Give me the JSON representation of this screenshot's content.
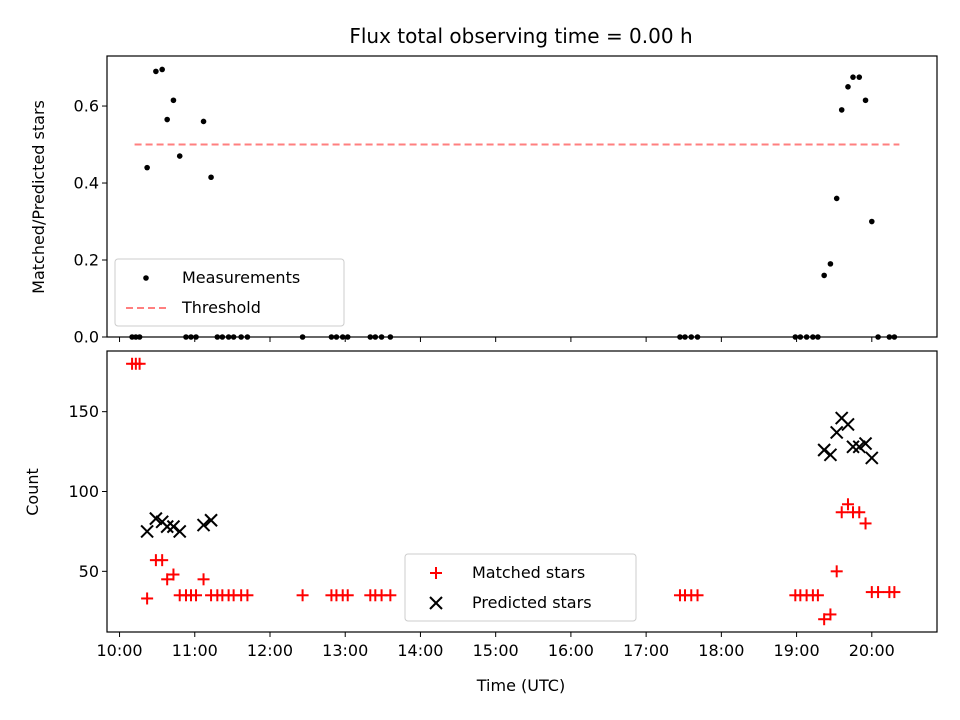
{
  "title": "Flux total observing time = 0.00 h",
  "xlabel": "Time (UTC)",
  "x_ticks": [
    "10:00",
    "11:00",
    "12:00",
    "13:00",
    "14:00",
    "15:00",
    "16:00",
    "17:00",
    "18:00",
    "19:00",
    "20:00"
  ],
  "colors": {
    "measurements": "#000000",
    "threshold": "#ff7f7f",
    "matched": "#ff0000",
    "predicted": "#000000"
  },
  "chart_data": [
    {
      "type": "scatter",
      "ylabel": "Matched/Predicted stars",
      "xlim": [
        "09:50",
        "20:52"
      ],
      "ylim": [
        0,
        0.73
      ],
      "y_ticks": [
        "0.0",
        "0.2",
        "0.4",
        "0.6"
      ],
      "legend_position": "lower-left",
      "series": [
        {
          "name": "Measurements",
          "marker": "dot",
          "points": [
            {
              "x": "10:10",
              "y": 0
            },
            {
              "x": "10:13",
              "y": 0
            },
            {
              "x": "10:16",
              "y": 0
            },
            {
              "x": "10:22",
              "y": 0.44
            },
            {
              "x": "10:29",
              "y": 0.69
            },
            {
              "x": "10:34",
              "y": 0.695
            },
            {
              "x": "10:38",
              "y": 0.565
            },
            {
              "x": "10:43",
              "y": 0.615
            },
            {
              "x": "10:48",
              "y": 0.47
            },
            {
              "x": "10:53",
              "y": 0
            },
            {
              "x": "10:57",
              "y": 0
            },
            {
              "x": "11:01",
              "y": 0
            },
            {
              "x": "11:07",
              "y": 0.56
            },
            {
              "x": "11:13",
              "y": 0.415
            },
            {
              "x": "11:18",
              "y": 0
            },
            {
              "x": "11:22",
              "y": 0
            },
            {
              "x": "11:27",
              "y": 0
            },
            {
              "x": "11:31",
              "y": 0
            },
            {
              "x": "11:37",
              "y": 0
            },
            {
              "x": "11:42",
              "y": 0
            },
            {
              "x": "12:26",
              "y": 0
            },
            {
              "x": "12:49",
              "y": 0
            },
            {
              "x": "12:53",
              "y": 0
            },
            {
              "x": "12:58",
              "y": 0
            },
            {
              "x": "13:02",
              "y": 0
            },
            {
              "x": "13:20",
              "y": 0
            },
            {
              "x": "13:24",
              "y": 0
            },
            {
              "x": "13:29",
              "y": 0
            },
            {
              "x": "13:36",
              "y": 0
            },
            {
              "x": "17:27",
              "y": 0
            },
            {
              "x": "17:31",
              "y": 0
            },
            {
              "x": "17:36",
              "y": 0
            },
            {
              "x": "17:41",
              "y": 0
            },
            {
              "x": "18:59",
              "y": 0
            },
            {
              "x": "19:03",
              "y": 0
            },
            {
              "x": "19:08",
              "y": 0
            },
            {
              "x": "19:13",
              "y": 0
            },
            {
              "x": "19:17",
              "y": 0
            },
            {
              "x": "19:22",
              "y": 0.16
            },
            {
              "x": "19:27",
              "y": 0.19
            },
            {
              "x": "19:32",
              "y": 0.36
            },
            {
              "x": "19:36",
              "y": 0.59
            },
            {
              "x": "19:41",
              "y": 0.65
            },
            {
              "x": "19:45",
              "y": 0.675
            },
            {
              "x": "19:50",
              "y": 0.675
            },
            {
              "x": "19:55",
              "y": 0.615
            },
            {
              "x": "20:00",
              "y": 0.3
            },
            {
              "x": "20:05",
              "y": 0
            },
            {
              "x": "20:14",
              "y": 0
            },
            {
              "x": "20:18",
              "y": 0
            }
          ]
        },
        {
          "name": "Threshold",
          "style": "dashed",
          "points": [
            {
              "x": "10:12",
              "y": 0.5
            },
            {
              "x": "20:22",
              "y": 0.5
            }
          ]
        }
      ]
    },
    {
      "type": "scatter",
      "ylabel": "Count",
      "xlim": [
        "09:50",
        "20:52"
      ],
      "ylim": [
        12,
        188
      ],
      "y_ticks": [
        "50",
        "100",
        "150"
      ],
      "legend_position": "lower-center",
      "series": [
        {
          "name": "Matched stars",
          "marker": "plus",
          "points": [
            {
              "x": "10:10",
              "y": 180
            },
            {
              "x": "10:13",
              "y": 180
            },
            {
              "x": "10:16",
              "y": 180
            },
            {
              "x": "10:22",
              "y": 33
            },
            {
              "x": "10:29",
              "y": 57
            },
            {
              "x": "10:34",
              "y": 57
            },
            {
              "x": "10:38",
              "y": 45
            },
            {
              "x": "10:43",
              "y": 48
            },
            {
              "x": "10:48",
              "y": 35
            },
            {
              "x": "10:53",
              "y": 35
            },
            {
              "x": "10:57",
              "y": 35
            },
            {
              "x": "11:01",
              "y": 35
            },
            {
              "x": "11:07",
              "y": 45
            },
            {
              "x": "11:13",
              "y": 35
            },
            {
              "x": "11:18",
              "y": 35
            },
            {
              "x": "11:22",
              "y": 35
            },
            {
              "x": "11:27",
              "y": 35
            },
            {
              "x": "11:31",
              "y": 35
            },
            {
              "x": "11:37",
              "y": 35
            },
            {
              "x": "11:42",
              "y": 35
            },
            {
              "x": "12:26",
              "y": 35
            },
            {
              "x": "12:49",
              "y": 35
            },
            {
              "x": "12:53",
              "y": 35
            },
            {
              "x": "12:58",
              "y": 35
            },
            {
              "x": "13:02",
              "y": 35
            },
            {
              "x": "13:20",
              "y": 35
            },
            {
              "x": "13:24",
              "y": 35
            },
            {
              "x": "13:29",
              "y": 35
            },
            {
              "x": "13:36",
              "y": 35
            },
            {
              "x": "17:27",
              "y": 35
            },
            {
              "x": "17:31",
              "y": 35
            },
            {
              "x": "17:36",
              "y": 35
            },
            {
              "x": "17:41",
              "y": 35
            },
            {
              "x": "18:59",
              "y": 35
            },
            {
              "x": "19:03",
              "y": 35
            },
            {
              "x": "19:08",
              "y": 35
            },
            {
              "x": "19:13",
              "y": 35
            },
            {
              "x": "19:17",
              "y": 35
            },
            {
              "x": "19:22",
              "y": 20
            },
            {
              "x": "19:27",
              "y": 23
            },
            {
              "x": "19:32",
              "y": 50
            },
            {
              "x": "19:36",
              "y": 87
            },
            {
              "x": "19:41",
              "y": 92
            },
            {
              "x": "19:45",
              "y": 87
            },
            {
              "x": "19:50",
              "y": 87
            },
            {
              "x": "19:55",
              "y": 80
            },
            {
              "x": "20:00",
              "y": 37
            },
            {
              "x": "20:05",
              "y": 37
            },
            {
              "x": "20:14",
              "y": 37
            },
            {
              "x": "20:18",
              "y": 37
            }
          ]
        },
        {
          "name": "Predicted stars",
          "marker": "x",
          "points": [
            {
              "x": "10:22",
              "y": 75
            },
            {
              "x": "10:29",
              "y": 83
            },
            {
              "x": "10:34",
              "y": 81
            },
            {
              "x": "10:38",
              "y": 78
            },
            {
              "x": "10:43",
              "y": 78
            },
            {
              "x": "10:48",
              "y": 75
            },
            {
              "x": "11:07",
              "y": 79
            },
            {
              "x": "11:13",
              "y": 82
            },
            {
              "x": "19:22",
              "y": 126
            },
            {
              "x": "19:27",
              "y": 123
            },
            {
              "x": "19:32",
              "y": 137
            },
            {
              "x": "19:36",
              "y": 146
            },
            {
              "x": "19:41",
              "y": 142
            },
            {
              "x": "19:45",
              "y": 128
            },
            {
              "x": "19:50",
              "y": 128
            },
            {
              "x": "19:55",
              "y": 130
            },
            {
              "x": "20:00",
              "y": 121
            }
          ]
        }
      ]
    }
  ]
}
